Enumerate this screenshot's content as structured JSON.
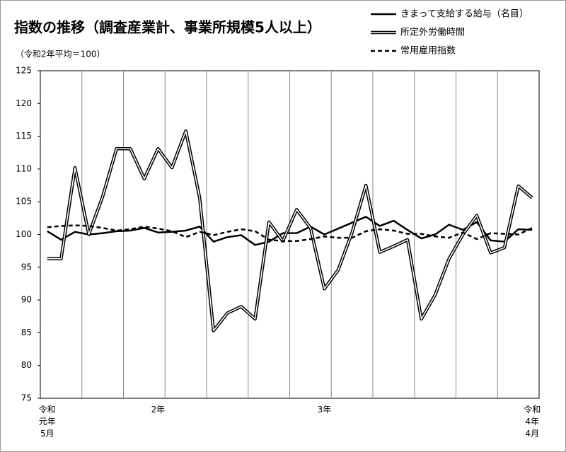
{
  "chart_data": {
    "type": "line",
    "title": "指数の推移（調査産業計、事業所規模5人以上）",
    "subtitle": "（令和2年平均＝100）",
    "categories": [
      "令和\n元年\n5月",
      null,
      null,
      null,
      null,
      null,
      null,
      null,
      "2年",
      null,
      null,
      null,
      null,
      null,
      null,
      null,
      null,
      null,
      null,
      null,
      "3年",
      null,
      null,
      null,
      null,
      null,
      null,
      null,
      null,
      null,
      null,
      null,
      null,
      null,
      null,
      "令和\n4年\n4月"
    ],
    "ylim": [
      75,
      125
    ],
    "yticks": [
      75,
      80,
      85,
      90,
      95,
      100,
      105,
      110,
      115,
      120,
      125
    ],
    "series": [
      {
        "name": "きまって支給する給与（名目）",
        "color": "#000000",
        "style": "solid",
        "values": [
          100.5,
          99.2,
          100.4,
          100.0,
          100.2,
          100.5,
          100.6,
          101.0,
          100.3,
          100.4,
          100.6,
          101.2,
          98.9,
          99.6,
          99.9,
          98.4,
          98.9,
          100.2,
          100.2,
          101.2,
          100.0,
          100.9,
          101.8,
          102.7,
          101.3,
          102.1,
          100.7,
          99.4,
          100.0,
          101.5,
          100.7,
          101.9,
          99.1,
          98.9,
          100.8,
          100.7
        ]
      },
      {
        "name": "所定外労働時間",
        "color": "#000000",
        "style": "double",
        "values": [
          96.3,
          96.3,
          110.2,
          100.0,
          105.8,
          113.1,
          113.1,
          108.5,
          113.1,
          110.2,
          115.8,
          105.6,
          85.3,
          88.0,
          89.0,
          87.1,
          101.9,
          99.0,
          103.8,
          101.0,
          91.7,
          94.6,
          100.3,
          107.5,
          97.3,
          98.2,
          99.2,
          87.1,
          90.8,
          96.3,
          100.0,
          102.9,
          97.2,
          98.0,
          107.4,
          105.6
        ]
      },
      {
        "name": "常用雇用指数",
        "color": "#000000",
        "style": "dashed",
        "values": [
          101.1,
          101.3,
          101.4,
          101.3,
          101.0,
          100.6,
          100.8,
          101.2,
          100.9,
          100.5,
          99.6,
          100.4,
          99.9,
          100.4,
          100.8,
          100.5,
          99.2,
          99.0,
          99.0,
          99.3,
          99.7,
          99.5,
          99.5,
          100.5,
          100.8,
          100.6,
          100.1,
          100.1,
          99.7,
          99.5,
          100.3,
          99.3,
          100.2,
          100.1,
          100.0,
          101.0
        ]
      }
    ]
  }
}
